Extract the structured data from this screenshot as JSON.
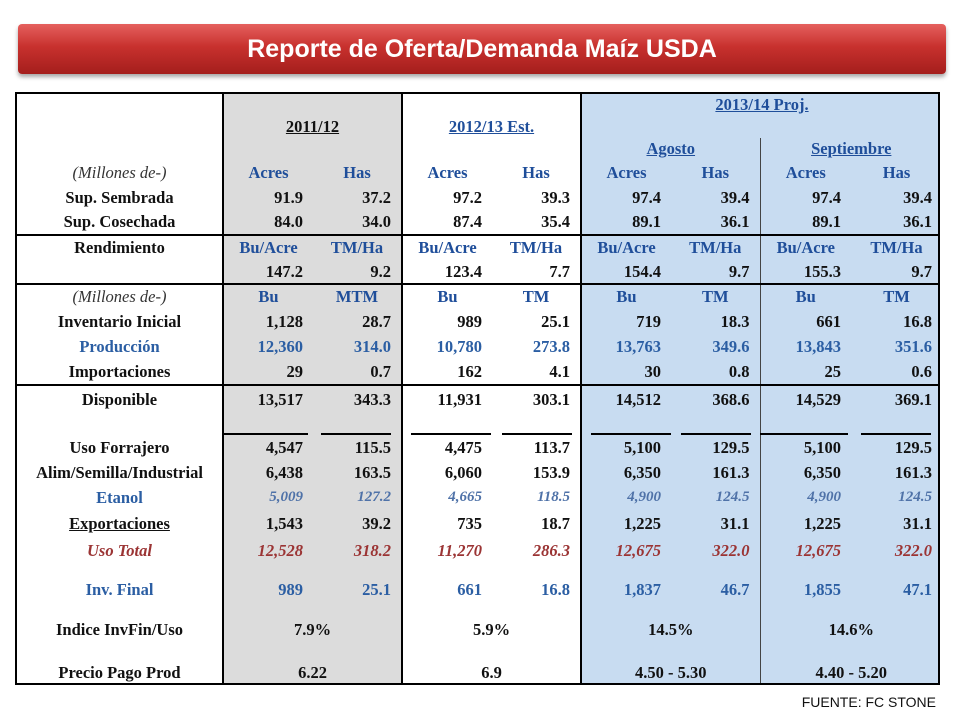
{
  "title": "Reporte de Oferta/Demanda Maíz USDA",
  "source": "FUENTE: FC STONE",
  "header": {
    "col_2011": "2011/12",
    "col_2012": "2012/13 Est.",
    "col_2013": "2013/14 Proj.",
    "sub_agosto": "Agosto",
    "sub_septiembre": "Septiembre",
    "millones": "(Millones de-)",
    "acres": "Acres",
    "has": "Has"
  },
  "rows": {
    "sembrada": {
      "label": "Sup. Sembrada",
      "v": [
        "91.9",
        "37.2",
        "97.2",
        "39.3",
        "97.4",
        "39.4",
        "97.4",
        "39.4"
      ]
    },
    "cosechada": {
      "label": "Sup. Cosechada",
      "v": [
        "84.0",
        "34.0",
        "87.4",
        "35.4",
        "89.1",
        "36.1",
        "89.1",
        "36.1"
      ]
    },
    "rend_units": {
      "label": "Rendimiento",
      "v": [
        "Bu/Acre",
        "TM/Ha",
        "Bu/Acre",
        "TM/Ha",
        "Bu/Acre",
        "TM/Ha",
        "Bu/Acre",
        "TM/Ha"
      ]
    },
    "rend_vals": {
      "v": [
        "147.2",
        "9.2",
        "123.4",
        "7.7",
        "154.4",
        "9.7",
        "155.3",
        "9.7"
      ]
    },
    "units2": {
      "label": "(Millones de-)",
      "v": [
        "Bu",
        "MTM",
        "Bu",
        "TM",
        "Bu",
        "TM",
        "Bu",
        "TM"
      ]
    },
    "inventario": {
      "label": "Inventario Inicial",
      "v": [
        "1,128",
        "28.7",
        "989",
        "25.1",
        "719",
        "18.3",
        "661",
        "16.8"
      ]
    },
    "produccion": {
      "label": "Producción",
      "v": [
        "12,360",
        "314.0",
        "10,780",
        "273.8",
        "13,763",
        "349.6",
        "13,843",
        "351.6"
      ]
    },
    "importaciones": {
      "label": "Importaciones",
      "v": [
        "29",
        "0.7",
        "162",
        "4.1",
        "30",
        "0.8",
        "25",
        "0.6"
      ]
    },
    "disponible": {
      "label": "Disponible",
      "v": [
        "13,517",
        "343.3",
        "11,931",
        "303.1",
        "14,512",
        "368.6",
        "14,529",
        "369.1"
      ]
    },
    "forrajero": {
      "label": "Uso Forrajero",
      "v": [
        "4,547",
        "115.5",
        "4,475",
        "113.7",
        "5,100",
        "129.5",
        "5,100",
        "129.5"
      ]
    },
    "alim": {
      "label": "Alim/Semilla/Industrial",
      "v": [
        "6,438",
        "163.5",
        "6,060",
        "153.9",
        "6,350",
        "161.3",
        "6,350",
        "161.3"
      ]
    },
    "etanol": {
      "label": "Etanol",
      "v": [
        "5,009",
        "127.2",
        "4,665",
        "118.5",
        "4,900",
        "124.5",
        "4,900",
        "124.5"
      ]
    },
    "exportaciones": {
      "label": "Exportaciones",
      "v": [
        "1,543",
        "39.2",
        "735",
        "18.7",
        "1,225",
        "31.1",
        "1,225",
        "31.1"
      ]
    },
    "uso_total": {
      "label": "Uso Total",
      "v": [
        "12,528",
        "318.2",
        "11,270",
        "286.3",
        "12,675",
        "322.0",
        "12,675",
        "322.0"
      ]
    },
    "inv_final": {
      "label": "Inv. Final",
      "v": [
        "989",
        "25.1",
        "661",
        "16.8",
        "1,837",
        "46.7",
        "1,855",
        "47.1"
      ]
    },
    "indice": {
      "label": "Indice InvFin/Uso",
      "v": [
        "7.9%",
        "5.9%",
        "14.5%",
        "14.6%"
      ]
    },
    "precio": {
      "label": "Precio Pago Prod",
      "v": [
        "6.22",
        "6.9",
        "4.50 - 5.30",
        "4.40 - 5.20"
      ]
    }
  }
}
